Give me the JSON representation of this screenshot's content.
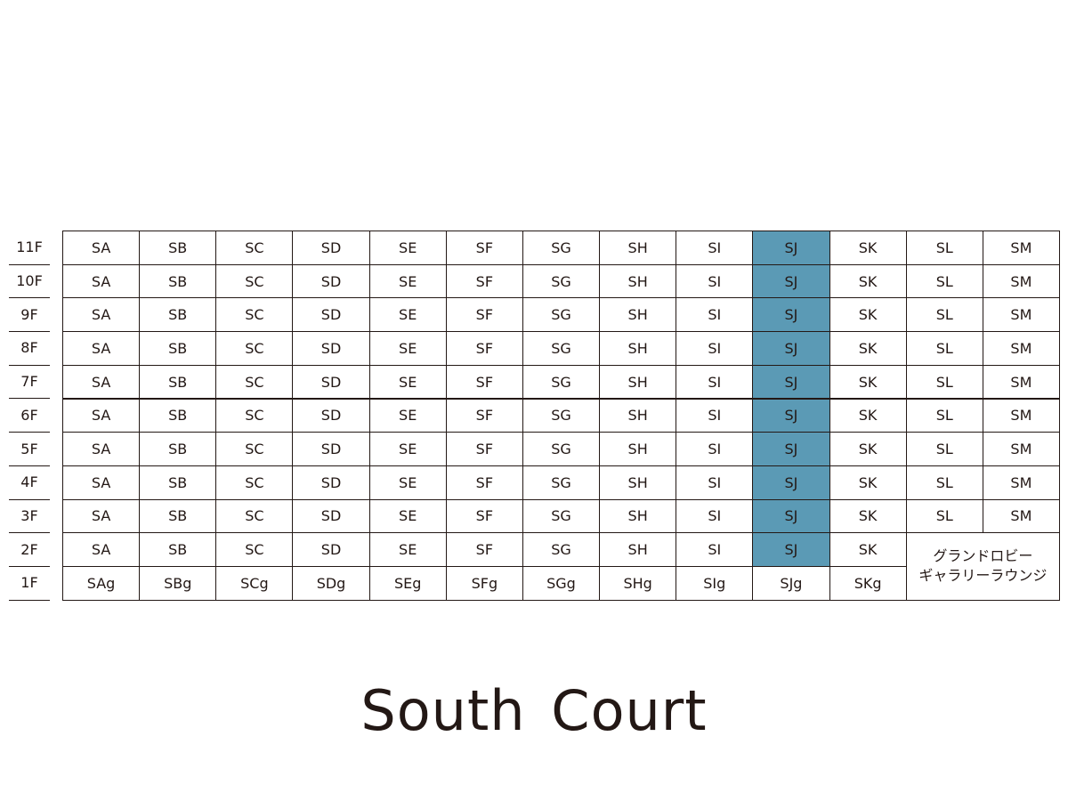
{
  "title": "South Court",
  "floors": [
    "11F",
    "10F",
    "9F",
    "8F",
    "7F",
    "6F",
    "5F",
    "4F",
    "3F",
    "2F",
    "1F"
  ],
  "rows": [
    [
      "SA",
      "SB",
      "SC",
      "SD",
      "SE",
      "SF",
      "SG",
      "SH",
      "SI",
      "SJ",
      "SK",
      "SL",
      "SM"
    ],
    [
      "SA",
      "SB",
      "SC",
      "SD",
      "SE",
      "SF",
      "SG",
      "SH",
      "SI",
      "SJ",
      "SK",
      "SL",
      "SM"
    ],
    [
      "SA",
      "SB",
      "SC",
      "SD",
      "SE",
      "SF",
      "SG",
      "SH",
      "SI",
      "SJ",
      "SK",
      "SL",
      "SM"
    ],
    [
      "SA",
      "SB",
      "SC",
      "SD",
      "SE",
      "SF",
      "SG",
      "SH",
      "SI",
      "SJ",
      "SK",
      "SL",
      "SM"
    ],
    [
      "SA",
      "SB",
      "SC",
      "SD",
      "SE",
      "SF",
      "SG",
      "SH",
      "SI",
      "SJ",
      "SK",
      "SL",
      "SM"
    ],
    [
      "SA",
      "SB",
      "SC",
      "SD",
      "SE",
      "SF",
      "SG",
      "SH",
      "SI",
      "SJ",
      "SK",
      "SL",
      "SM"
    ],
    [
      "SA",
      "SB",
      "SC",
      "SD",
      "SE",
      "SF",
      "SG",
      "SH",
      "SI",
      "SJ",
      "SK",
      "SL",
      "SM"
    ],
    [
      "SA",
      "SB",
      "SC",
      "SD",
      "SE",
      "SF",
      "SG",
      "SH",
      "SI",
      "SJ",
      "SK",
      "SL",
      "SM"
    ],
    [
      "SA",
      "SB",
      "SC",
      "SD",
      "SE",
      "SF",
      "SG",
      "SH",
      "SI",
      "SJ",
      "SK",
      "SL",
      "SM"
    ],
    [
      "SA",
      "SB",
      "SC",
      "SD",
      "SE",
      "SF",
      "SG",
      "SH",
      "SI",
      "SJ",
      "SK"
    ],
    [
      "SAg",
      "SBg",
      "SCg",
      "SDg",
      "SEg",
      "SFg",
      "SGg",
      "SHg",
      "SIg",
      "SJg",
      "SKg"
    ]
  ],
  "lobby": {
    "lines": [
      "グランドロビー",
      "ギャラリーラウンジ"
    ]
  }
}
